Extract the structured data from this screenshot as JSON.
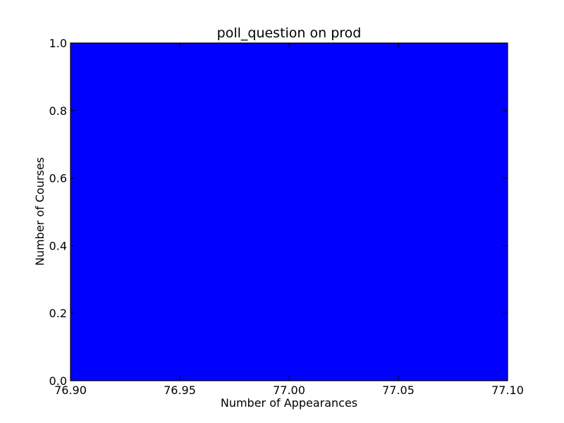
{
  "chart_data": {
    "type": "bar",
    "title": "poll_question on prod",
    "xlabel": "Number of Appearances",
    "ylabel": "Number of Courses",
    "xlim": [
      76.9,
      77.1
    ],
    "ylim": [
      0.0,
      1.0
    ],
    "x_ticks": [
      "76.90",
      "76.95",
      "77.00",
      "77.05",
      "77.10"
    ],
    "x_tick_values": [
      76.9,
      76.95,
      77.0,
      77.05,
      77.1
    ],
    "y_ticks": [
      "0.0",
      "0.2",
      "0.4",
      "0.6",
      "0.8",
      "1.0"
    ],
    "y_tick_values": [
      0.0,
      0.2,
      0.4,
      0.6,
      0.8,
      1.0
    ],
    "bars": [
      {
        "x_start": 76.9,
        "x_end": 77.1,
        "value": 1.0
      }
    ],
    "bar_color": "#0000ff",
    "grid": false,
    "legend": "none"
  }
}
